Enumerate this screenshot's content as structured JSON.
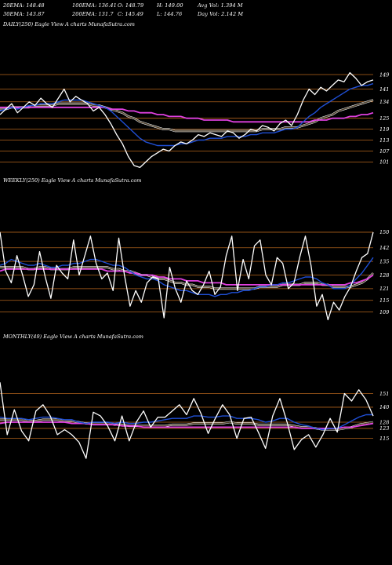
{
  "header": {
    "ema20": "20EMA: 148.48",
    "ema100": "100EMA: 136.41",
    "open": "O: 148.79",
    "high": "H: 149.00",
    "avg_vol": "Avg Vol: 1.394 M",
    "ema30": "30EMA: 143.87",
    "ema200": "200EMA: 131.7",
    "close": "C: 145.49",
    "low": "L: 144.76",
    "day_vol": "Day Vol: 2.142  M"
  },
  "colors": {
    "price": "#ffffff",
    "ema_fast": "#1f4fd6",
    "ema_slow": "#e040e0",
    "grid": "#b5651d",
    "band": "#8a6a3a"
  },
  "chart_data": [
    {
      "type": "line",
      "title": "DAILY(250) Eagle  View  A charts MunafaSutra.com",
      "price_levels": [
        149,
        141,
        134,
        125,
        119,
        113,
        107,
        101
      ],
      "ylim": [
        96,
        152
      ],
      "series": [
        {
          "values": [
            127,
            130,
            133,
            128,
            131,
            134,
            132,
            136,
            133,
            131,
            136,
            141,
            134,
            137,
            135,
            133,
            129,
            131,
            127,
            122,
            116,
            111,
            104,
            99,
            98,
            101,
            104,
            106,
            108,
            107,
            110,
            112,
            111,
            113,
            116,
            115,
            117,
            116,
            115,
            118,
            117,
            114,
            116,
            119,
            118,
            121,
            120,
            118,
            122,
            124,
            121,
            127,
            135,
            141,
            138,
            142,
            140,
            143,
            146,
            145,
            150,
            147,
            143,
            145,
            146
          ]
        },
        {
          "values": [
            129,
            130,
            131,
            130,
            131,
            132,
            132,
            133,
            133,
            133,
            134,
            135,
            135,
            135,
            135,
            134,
            133,
            132,
            131,
            129,
            126,
            123,
            120,
            117,
            114,
            112,
            111,
            110,
            110,
            110,
            110,
            111,
            111,
            112,
            113,
            113,
            114,
            114,
            114,
            115,
            115,
            115,
            115,
            116,
            116,
            117,
            117,
            117,
            118,
            119,
            119,
            120,
            123,
            126,
            128,
            131,
            133,
            135,
            137,
            139,
            141,
            142,
            143,
            143,
            144
          ]
        },
        {
          "values": [
            130,
            130,
            131,
            131,
            131,
            131,
            132,
            132,
            132,
            132,
            133,
            133,
            133,
            133,
            133,
            133,
            132,
            132,
            131,
            130,
            129,
            128,
            126,
            125,
            123,
            122,
            121,
            120,
            119,
            119,
            118,
            118,
            118,
            118,
            118,
            118,
            118,
            118,
            118,
            118,
            118,
            118,
            118,
            118,
            118,
            119,
            119,
            119,
            119,
            120,
            120,
            120,
            121,
            122,
            123,
            125,
            126,
            127,
            129,
            130,
            131,
            132,
            133,
            134,
            135
          ]
        },
        {
          "values": [
            131,
            131,
            131,
            131,
            131,
            131,
            131,
            131,
            131,
            131,
            131,
            131,
            131,
            131,
            131,
            131,
            131,
            131,
            131,
            130,
            130,
            130,
            129,
            129,
            128,
            128,
            128,
            127,
            127,
            126,
            126,
            126,
            125,
            125,
            125,
            124,
            124,
            124,
            124,
            124,
            123,
            123,
            123,
            123,
            123,
            123,
            123,
            123,
            123,
            123,
            123,
            123,
            123,
            123,
            124,
            124,
            124,
            125,
            125,
            125,
            126,
            126,
            127,
            127,
            128
          ]
        }
      ]
    },
    {
      "type": "line",
      "title": "WEEKLY(250) Eagle  View  A charts MunafaSutra.com",
      "price_levels": [
        150,
        142,
        135,
        128,
        121,
        115,
        109
      ],
      "ylim": [
        104,
        154
      ],
      "series": [
        {
          "values": [
            150,
            130,
            124,
            138,
            128,
            117,
            123,
            140,
            127,
            116,
            133,
            129,
            126,
            146,
            128,
            138,
            148,
            134,
            126,
            129,
            120,
            147,
            128,
            112,
            120,
            114,
            124,
            127,
            126,
            106,
            132,
            121,
            114,
            125,
            120,
            118,
            123,
            130,
            118,
            122,
            138,
            148,
            120,
            136,
            126,
            143,
            146,
            128,
            123,
            137,
            134,
            121,
            124,
            137,
            148,
            133,
            112,
            118,
            105,
            114,
            110,
            117,
            122,
            130,
            137,
            139,
            150
          ]
        },
        {
          "values": [
            133,
            134,
            136,
            135,
            134,
            133,
            133,
            134,
            133,
            132,
            132,
            133,
            133,
            134,
            134,
            135,
            136,
            136,
            135,
            134,
            133,
            133,
            132,
            130,
            128,
            127,
            126,
            126,
            125,
            123,
            122,
            121,
            120,
            120,
            119,
            118,
            118,
            118,
            117,
            118,
            118,
            119,
            119,
            120,
            120,
            121,
            122,
            122,
            123,
            123,
            124,
            124,
            125,
            126,
            127,
            127,
            126,
            124,
            123,
            121,
            121,
            121,
            123,
            126,
            129,
            133,
            137
          ]
        },
        {
          "values": [
            132,
            132,
            132,
            132,
            132,
            131,
            131,
            132,
            132,
            131,
            131,
            131,
            131,
            132,
            132,
            132,
            132,
            132,
            132,
            132,
            131,
            131,
            130,
            130,
            129,
            128,
            128,
            127,
            126,
            126,
            125,
            124,
            124,
            123,
            123,
            122,
            122,
            122,
            121,
            121,
            121,
            121,
            121,
            121,
            121,
            121,
            122,
            122,
            122,
            122,
            123,
            123,
            123,
            123,
            124,
            124,
            124,
            123,
            123,
            122,
            122,
            122,
            122,
            123,
            124,
            126,
            129
          ]
        },
        {
          "values": [
            130,
            131,
            131,
            131,
            131,
            131,
            131,
            131,
            131,
            131,
            131,
            131,
            131,
            131,
            131,
            131,
            131,
            131,
            131,
            130,
            130,
            130,
            130,
            129,
            129,
            128,
            128,
            128,
            127,
            127,
            126,
            126,
            126,
            125,
            125,
            125,
            124,
            124,
            124,
            124,
            123,
            123,
            123,
            123,
            123,
            123,
            123,
            123,
            123,
            123,
            123,
            123,
            123,
            123,
            123,
            123,
            123,
            123,
            123,
            123,
            123,
            123,
            124,
            124,
            125,
            126,
            128
          ]
        }
      ]
    },
    {
      "type": "line",
      "title": "MONTHLY(49) Eagle  View  A charts MunafaSutra.com",
      "price_levels": [
        151,
        140,
        128,
        123,
        115
      ],
      "ylim": [
        94,
        162
      ],
      "series": [
        {
          "values": [
            160,
            118,
            138,
            121,
            113,
            137,
            142,
            133,
            118,
            122,
            118,
            112,
            99,
            136,
            133,
            125,
            113,
            133,
            113,
            128,
            137,
            124,
            132,
            132,
            137,
            142,
            134,
            147,
            135,
            119,
            131,
            142,
            134,
            115,
            131,
            132,
            120,
            107,
            133,
            147,
            128,
            106,
            114,
            118,
            108,
            118,
            131,
            120,
            151,
            145,
            154,
            146,
            133
          ]
        },
        {
          "values": [
            132,
            131,
            131,
            131,
            130,
            131,
            132,
            132,
            131,
            130,
            130,
            128,
            127,
            128,
            128,
            128,
            127,
            128,
            127,
            127,
            128,
            128,
            129,
            130,
            131,
            131,
            131,
            133,
            133,
            132,
            132,
            133,
            133,
            131,
            131,
            131,
            130,
            128,
            129,
            131,
            131,
            128,
            126,
            125,
            123,
            122,
            123,
            123,
            126,
            129,
            132,
            134,
            134
          ]
        },
        {
          "values": [
            130,
            130,
            130,
            130,
            129,
            129,
            130,
            130,
            130,
            129,
            129,
            128,
            127,
            127,
            127,
            127,
            126,
            126,
            125,
            125,
            125,
            125,
            125,
            125,
            126,
            126,
            126,
            127,
            127,
            127,
            127,
            127,
            128,
            127,
            127,
            127,
            126,
            126,
            126,
            126,
            126,
            125,
            124,
            124,
            123,
            122,
            122,
            122,
            123,
            124,
            126,
            127,
            128
          ]
        },
        {
          "values": [
            127,
            128,
            128,
            128,
            128,
            128,
            128,
            128,
            128,
            128,
            127,
            127,
            127,
            126,
            126,
            126,
            126,
            125,
            125,
            125,
            124,
            124,
            124,
            124,
            124,
            124,
            124,
            124,
            124,
            124,
            124,
            124,
            124,
            124,
            124,
            124,
            124,
            124,
            124,
            124,
            124,
            124,
            123,
            123,
            123,
            123,
            123,
            123,
            124,
            124,
            125,
            126,
            127
          ]
        }
      ]
    }
  ]
}
